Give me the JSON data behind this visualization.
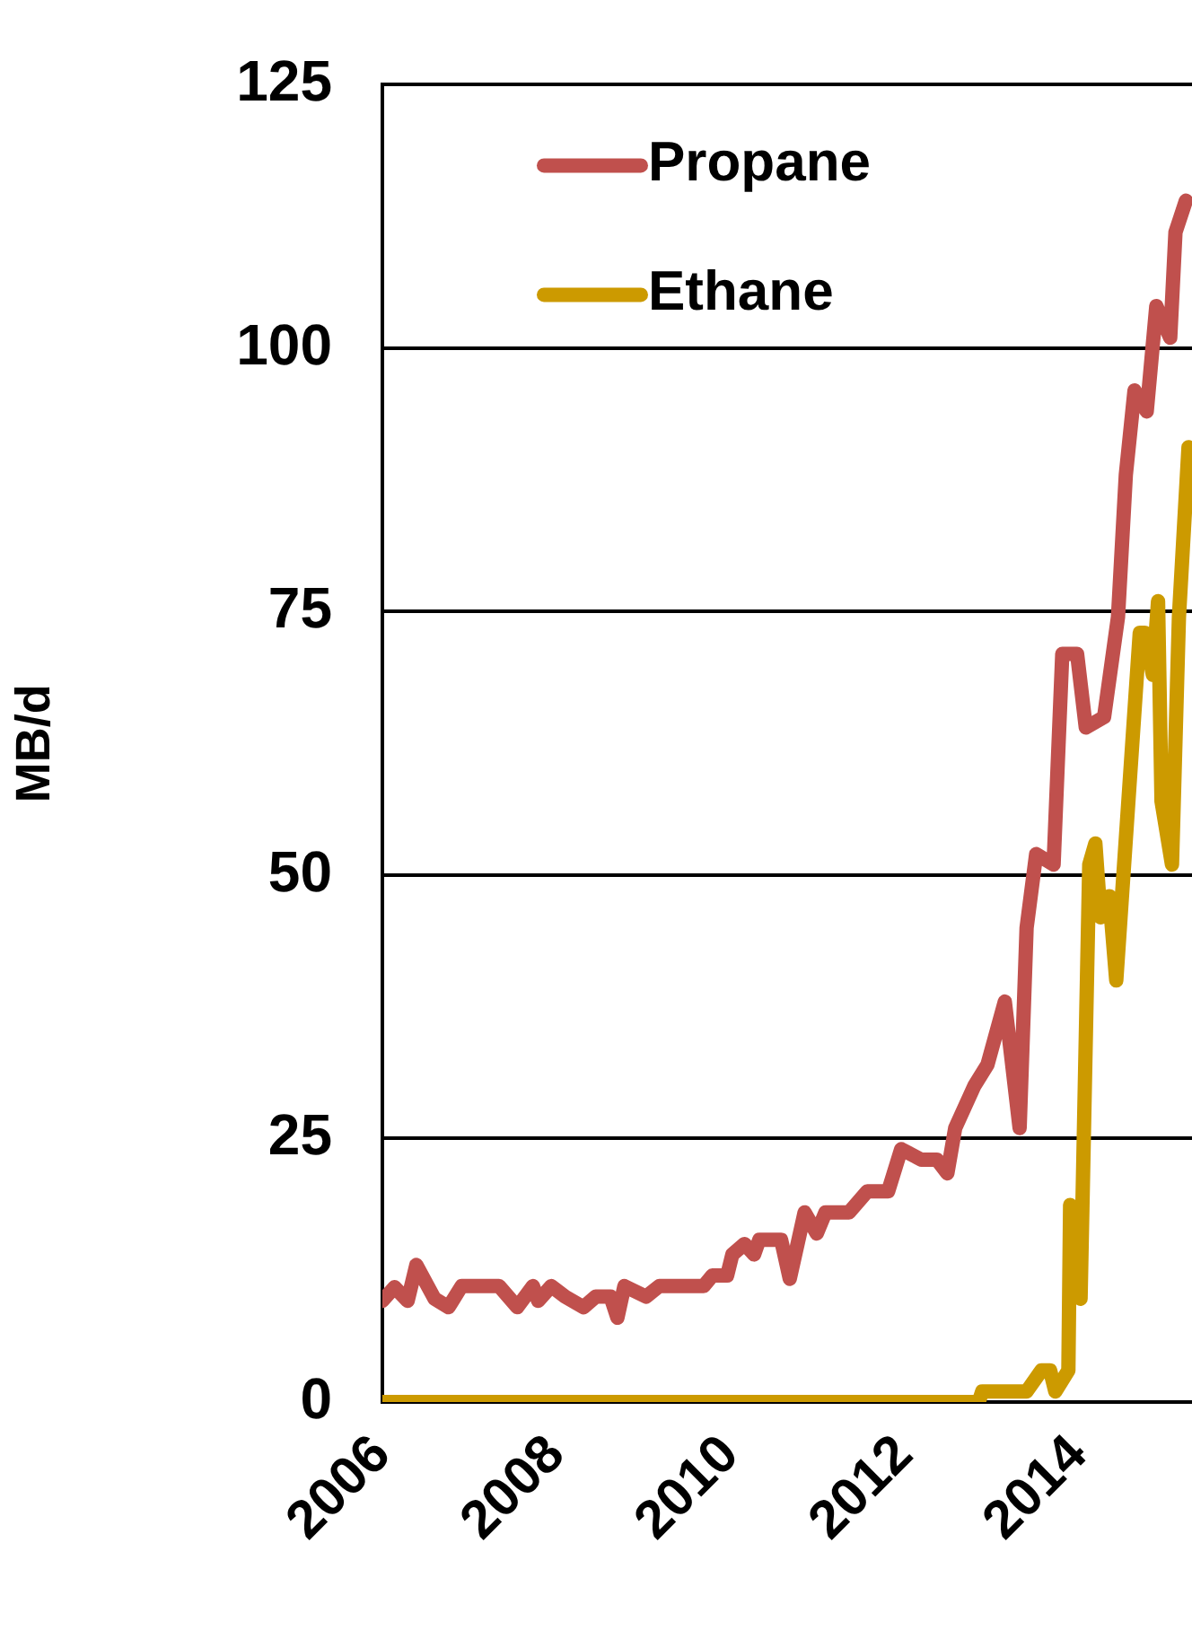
{
  "chart_data": {
    "type": "line",
    "ylabel": "MB/d",
    "xlim": [
      2006,
      2015.3
    ],
    "xticks": [
      2006,
      2008,
      2010,
      2012,
      2014
    ],
    "ylim": [
      0,
      125
    ],
    "yticks": [
      0,
      25,
      50,
      75,
      100,
      125
    ],
    "grid": "y",
    "legend": "top left",
    "marker": "none",
    "line_style": "solid",
    "series": [
      {
        "name": "Propane",
        "color": "#c0504d",
        "x": [
          2006.0,
          2006.14,
          2006.29,
          2006.39,
          2006.6,
          2006.76,
          2006.91,
          2007.34,
          2007.55,
          2007.73,
          2007.79,
          2007.94,
          2008.1,
          2008.31,
          2008.45,
          2008.62,
          2008.7,
          2008.78,
          2009.03,
          2009.18,
          2009.69,
          2009.79,
          2009.96,
          2010.02,
          2010.16,
          2010.27,
          2010.33,
          2010.58,
          2010.68,
          2010.85,
          2010.99,
          2011.09,
          2011.36,
          2011.57,
          2011.81,
          2011.96,
          2012.19,
          2012.37,
          2012.49,
          2012.58,
          2012.8,
          2012.95,
          2013.15,
          2013.32,
          2013.4,
          2013.51,
          2013.71,
          2013.81,
          2013.98,
          2014.08,
          2014.29,
          2014.45,
          2014.54,
          2014.64,
          2014.78,
          2014.89,
          2015.05,
          2015.11,
          2015.23
        ],
        "values": [
          9.6,
          10.9,
          9.6,
          13,
          9.8,
          9,
          11,
          11,
          9,
          11,
          9.6,
          11,
          10,
          9,
          10,
          10,
          8,
          11,
          10,
          11,
          11,
          12,
          12,
          14,
          15,
          14,
          15.4,
          15.4,
          11.7,
          18,
          16,
          18,
          18,
          20,
          20,
          24,
          23,
          23,
          21.7,
          26,
          30,
          32,
          38,
          26,
          45,
          52,
          51,
          71,
          71,
          64,
          65,
          74.5,
          88,
          96,
          94,
          104,
          101,
          111,
          114
        ]
      },
      {
        "name": "Ethane",
        "color": "#cc9a00",
        "x": [
          2006.0,
          2012.85,
          2012.89,
          2013.4,
          2013.57,
          2013.67,
          2013.73,
          2013.88,
          2013.9,
          2014.02,
          2014.12,
          2014.19,
          2014.25,
          2014.35,
          2014.43,
          2014.7,
          2014.76,
          2014.85,
          2014.91,
          2014.95,
          2015.07,
          2015.15,
          2015.26
        ],
        "values": [
          0,
          0,
          1,
          1,
          3,
          3,
          1,
          3,
          18.7,
          9.8,
          51,
          53,
          46,
          48,
          40,
          73,
          73,
          69,
          76,
          57,
          51,
          74.5,
          90.6
        ]
      }
    ]
  }
}
